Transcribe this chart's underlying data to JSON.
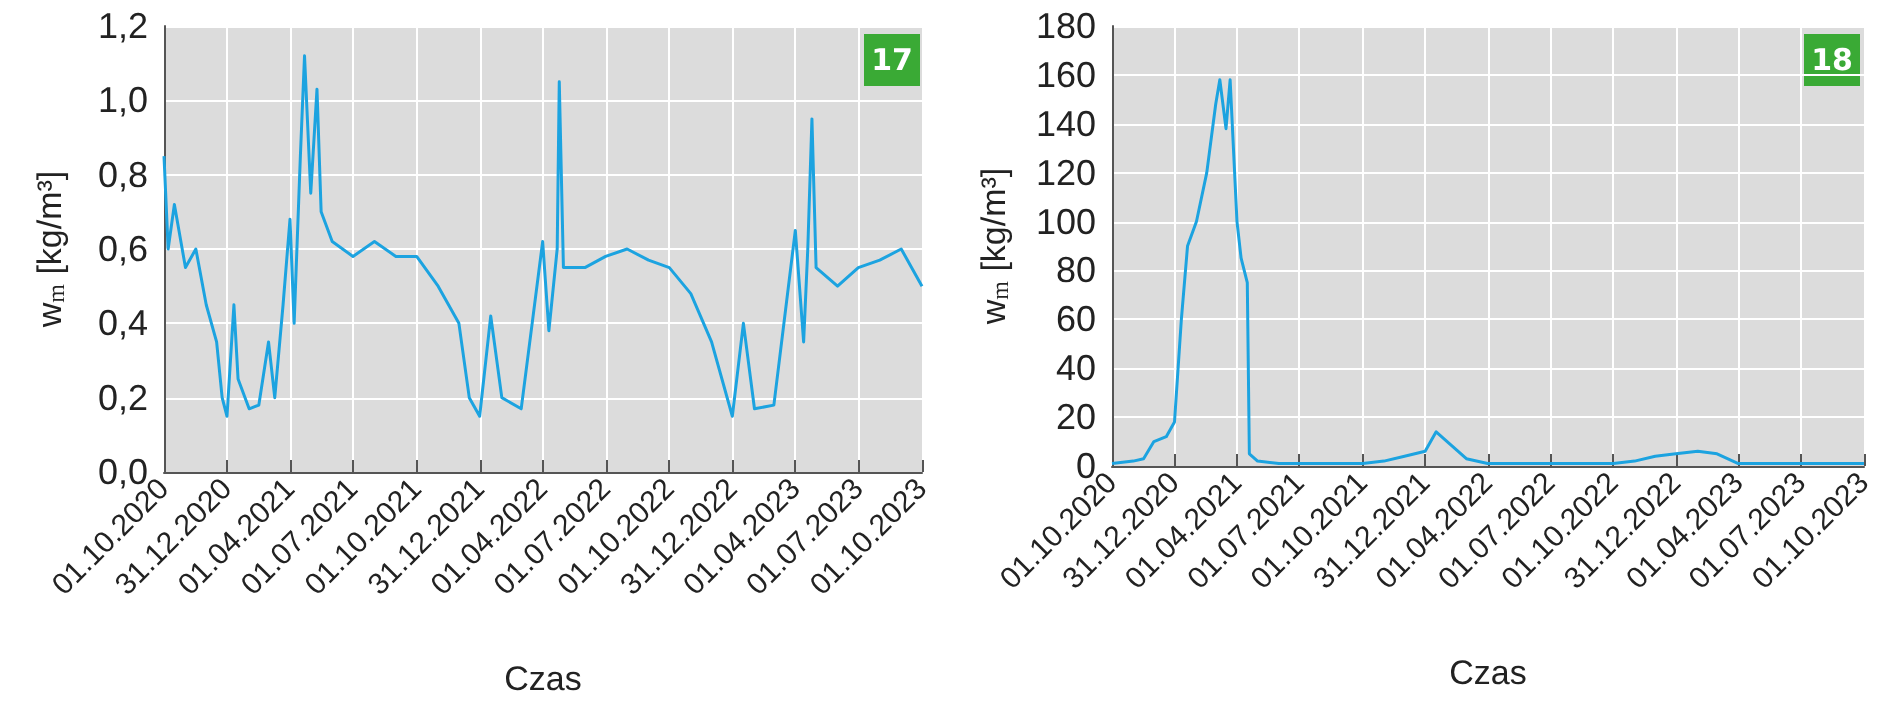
{
  "chart_data": [
    {
      "type": "line",
      "xlabel": "Czas",
      "ylabel": "w$_{m}$ [kg/m³]",
      "annotations": [
        "17"
      ],
      "grid": true,
      "marker": "none",
      "line_style": "solid",
      "xlim": [
        "2020-10-01",
        "2023-10-01"
      ],
      "xticks": [
        {
          "value": "2020-10-01",
          "label": "01.10.2020"
        },
        {
          "value": "2020-12-31",
          "label": "31.12.2020"
        },
        {
          "value": "2021-04-01",
          "label": "01.04.2021"
        },
        {
          "value": "2021-07-01",
          "label": "01.07.2021"
        },
        {
          "value": "2021-10-01",
          "label": "01.10.2021"
        },
        {
          "value": "2021-12-31",
          "label": "31.12.2021"
        },
        {
          "value": "2022-04-01",
          "label": "01.04.2022"
        },
        {
          "value": "2022-07-01",
          "label": "01.07.2022"
        },
        {
          "value": "2022-10-01",
          "label": "01.10.2022"
        },
        {
          "value": "2022-12-31",
          "label": "31.12.2022"
        },
        {
          "value": "2023-04-01",
          "label": "01.04.2023"
        },
        {
          "value": "2023-07-01",
          "label": "01.07.2023"
        },
        {
          "value": "2023-10-01",
          "label": "01.10.2023"
        }
      ],
      "ylim": [
        0,
        1.2
      ],
      "yticks": [
        {
          "value": 0,
          "label": "0,0"
        },
        {
          "value": 0.2,
          "label": "0,2"
        },
        {
          "value": 0.4,
          "label": "0,4"
        },
        {
          "value": 0.6,
          "label": "0,6"
        },
        {
          "value": 0.8,
          "label": "0,8"
        },
        {
          "value": 1.0,
          "label": "1,0"
        },
        {
          "value": 1.2,
          "label": "1,2"
        }
      ],
      "series": [
        {
          "color": "#1ca3e0",
          "x": [
            "2020-10-01",
            "2020-10-07",
            "2020-10-16",
            "2020-11-01",
            "2020-11-16",
            "2020-12-01",
            "2020-12-16",
            "2020-12-24",
            "2020-12-31",
            "2021-01-10",
            "2021-01-16",
            "2021-02-01",
            "2021-02-15",
            "2021-03-01",
            "2021-03-10",
            "2021-03-22",
            "2021-04-01",
            "2021-04-07",
            "2021-04-16",
            "2021-04-22",
            "2021-05-01",
            "2021-05-10",
            "2021-05-16",
            "2021-06-01",
            "2021-07-01",
            "2021-08-01",
            "2021-09-01",
            "2021-10-01",
            "2021-11-01",
            "2021-12-01",
            "2021-12-16",
            "2021-12-31",
            "2022-01-16",
            "2022-02-01",
            "2022-03-01",
            "2022-04-01",
            "2022-04-10",
            "2022-04-22",
            "2022-04-25",
            "2022-05-01",
            "2022-06-01",
            "2022-07-01",
            "2022-08-01",
            "2022-09-01",
            "2022-10-01",
            "2022-11-01",
            "2022-12-01",
            "2022-12-31",
            "2023-01-16",
            "2023-02-01",
            "2023-03-01",
            "2023-04-01",
            "2023-04-13",
            "2023-04-19",
            "2023-04-25",
            "2023-05-01",
            "2023-06-01",
            "2023-07-01",
            "2023-08-01",
            "2023-09-01",
            "2023-10-01"
          ],
          "values": [
            0.85,
            0.6,
            0.72,
            0.55,
            0.6,
            0.45,
            0.35,
            0.2,
            0.15,
            0.45,
            0.25,
            0.17,
            0.18,
            0.35,
            0.2,
            0.45,
            0.68,
            0.4,
            0.85,
            1.12,
            0.75,
            1.03,
            0.7,
            0.62,
            0.58,
            0.62,
            0.58,
            0.58,
            0.5,
            0.4,
            0.2,
            0.15,
            0.42,
            0.2,
            0.17,
            0.62,
            0.38,
            0.6,
            1.05,
            0.55,
            0.55,
            0.58,
            0.6,
            0.57,
            0.55,
            0.48,
            0.35,
            0.15,
            0.4,
            0.17,
            0.18,
            0.65,
            0.35,
            0.6,
            0.95,
            0.55,
            0.5,
            0.55,
            0.57,
            0.6,
            0.5
          ]
        }
      ]
    },
    {
      "type": "line",
      "xlabel": "Czas",
      "ylabel": "w$_{m}$ [kg/m³]",
      "annotations": [
        "18"
      ],
      "grid": true,
      "marker": "none",
      "line_style": "solid",
      "xlim": [
        "2020-10-01",
        "2023-10-01"
      ],
      "xticks": [
        {
          "value": "2020-10-01",
          "label": "01.10.2020"
        },
        {
          "value": "2020-12-31",
          "label": "31.12.2020"
        },
        {
          "value": "2021-04-01",
          "label": "01.04.2021"
        },
        {
          "value": "2021-07-01",
          "label": "01.07.2021"
        },
        {
          "value": "2021-10-01",
          "label": "01.10.2021"
        },
        {
          "value": "2021-12-31",
          "label": "31.12.2021"
        },
        {
          "value": "2022-04-01",
          "label": "01.04.2022"
        },
        {
          "value": "2022-07-01",
          "label": "01.07.2022"
        },
        {
          "value": "2022-10-01",
          "label": "01.10.2022"
        },
        {
          "value": "2022-12-31",
          "label": "31.12.2022"
        },
        {
          "value": "2023-04-01",
          "label": "01.04.2023"
        },
        {
          "value": "2023-07-01",
          "label": "01.07.2023"
        },
        {
          "value": "2023-10-01",
          "label": "01.10.2023"
        }
      ],
      "ylim": [
        0,
        180
      ],
      "yticks": [
        0,
        20,
        40,
        60,
        80,
        100,
        120,
        140,
        160,
        180
      ],
      "series": [
        {
          "color": "#1ca3e0",
          "x": [
            "2020-10-01",
            "2020-11-01",
            "2020-11-16",
            "2020-12-01",
            "2020-12-19",
            "2020-12-31",
            "2021-01-10",
            "2021-01-19",
            "2021-02-01",
            "2021-02-16",
            "2021-03-01",
            "2021-03-07",
            "2021-03-16",
            "2021-03-22",
            "2021-04-01",
            "2021-04-07",
            "2021-04-16",
            "2021-04-19",
            "2021-05-01",
            "2021-06-01",
            "2021-10-01",
            "2021-11-01",
            "2021-12-01",
            "2021-12-31",
            "2022-01-16",
            "2022-02-01",
            "2022-03-01",
            "2022-04-01",
            "2022-07-01",
            "2022-10-01",
            "2022-11-01",
            "2022-12-01",
            "2022-12-31",
            "2023-02-01",
            "2023-03-01",
            "2023-04-01",
            "2023-05-01",
            "2023-10-01"
          ],
          "values": [
            1,
            2,
            3,
            10,
            12,
            18,
            60,
            90,
            100,
            120,
            148,
            158,
            138,
            158,
            100,
            85,
            75,
            5,
            2,
            1,
            1,
            2,
            4,
            6,
            14,
            10,
            3,
            1,
            1,
            1,
            2,
            4,
            5,
            6,
            5,
            1,
            1,
            1
          ]
        }
      ]
    }
  ]
}
